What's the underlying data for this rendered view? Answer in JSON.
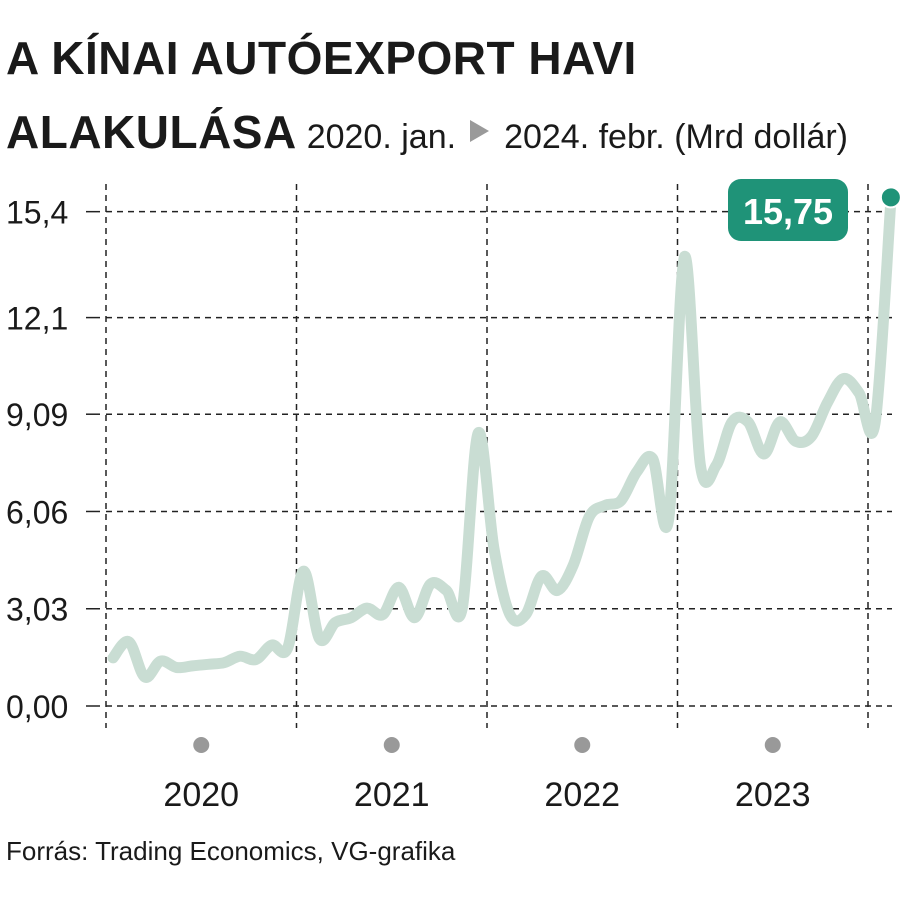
{
  "header": {
    "title_line1": "A KÍNAI AUTÓEXPORT HAVI",
    "title_line2": "ALAKULÁSA",
    "subtitle_start": "2020. jan.",
    "subtitle_end": "2024. febr. (Mrd dollár)",
    "arrow_icon": "triangle-right-icon"
  },
  "source": "Forrás: Trading Economics, VG-grafika",
  "colors": {
    "line": "#c9ddd3",
    "accent": "#1f9378",
    "grid": "#222222",
    "year_dot": "#999999"
  },
  "chart_data": {
    "type": "line",
    "title": "A KÍNAI AUTÓEXPORT HAVI ALAKULÁSA",
    "subtitle": "2020. jan. – 2024. febr. (Mrd dollár)",
    "xlabel": "",
    "ylabel": "Mrd dollár",
    "ylim": [
      0,
      15.75
    ],
    "yticks": [
      0,
      3.03,
      6.06,
      9.09,
      12.1,
      15.4
    ],
    "ytick_labels": [
      "0,00",
      "3,03",
      "6,06",
      "9,09",
      "12,1",
      "15,4"
    ],
    "year_labels": [
      "2020",
      "2021",
      "2022",
      "2023"
    ],
    "grid": true,
    "series": [
      {
        "name": "Kínai autóexport",
        "x": [
          "2020-01",
          "2020-02",
          "2020-03",
          "2020-04",
          "2020-05",
          "2020-06",
          "2020-07",
          "2020-08",
          "2020-09",
          "2020-10",
          "2020-11",
          "2020-12",
          "2021-01",
          "2021-02",
          "2021-03",
          "2021-04",
          "2021-05",
          "2021-06",
          "2021-07",
          "2021-08",
          "2021-09",
          "2021-10",
          "2021-11",
          "2021-12",
          "2022-01",
          "2022-02",
          "2022-03",
          "2022-04",
          "2022-05",
          "2022-06",
          "2022-07",
          "2022-08",
          "2022-09",
          "2022-10",
          "2022-11",
          "2022-12",
          "2023-01",
          "2023-02",
          "2023-03",
          "2023-04",
          "2023-05",
          "2023-06",
          "2023-07",
          "2023-08",
          "2023-09",
          "2023-10",
          "2023-11",
          "2023-12",
          "2024-01",
          "2024-02"
        ],
        "values": [
          1.5,
          2.0,
          0.9,
          1.4,
          1.2,
          1.25,
          1.3,
          1.35,
          1.55,
          1.45,
          1.9,
          1.8,
          4.2,
          2.1,
          2.6,
          2.75,
          3.05,
          2.85,
          3.7,
          2.75,
          3.8,
          3.6,
          3.05,
          8.5,
          4.9,
          2.85,
          2.85,
          4.05,
          3.6,
          4.4,
          5.9,
          6.25,
          6.4,
          7.3,
          7.7,
          5.8,
          14.0,
          7.5,
          7.5,
          8.85,
          8.85,
          7.85,
          8.85,
          8.25,
          8.4,
          9.45,
          10.2,
          9.75,
          8.8,
          15.75
        ]
      }
    ],
    "annotations": [
      {
        "text": "15,75",
        "x": "2024-02",
        "y": 15.75
      }
    ]
  }
}
